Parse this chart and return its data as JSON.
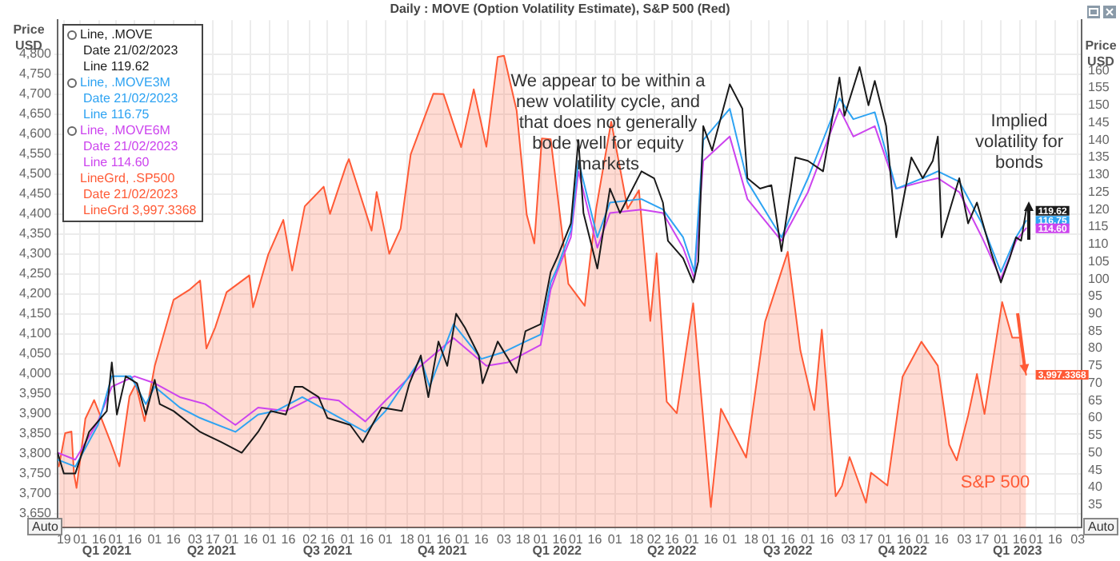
{
  "chart_data": {
    "type": "line",
    "title": "Daily : MOVE (Option Volatility Estimate), S&P 500 (Red)",
    "ylabel": "Price USD",
    "y2label": "Price USD",
    "xlim": [
      "2021-01-14",
      "2023-04-06"
    ],
    "xticks": [
      {
        "value": "2021-01-19",
        "label": "19"
      },
      {
        "value": "2021-02-01",
        "label": "01"
      },
      {
        "value": "2021-02-16",
        "label": "16"
      },
      {
        "value": "2021-03-01",
        "label": "01"
      },
      {
        "value": "2021-03-16",
        "label": "16"
      },
      {
        "value": "2021-04-01",
        "label": "01"
      },
      {
        "value": "2021-04-16",
        "label": "16"
      },
      {
        "value": "2021-05-03",
        "label": "03"
      },
      {
        "value": "2021-05-17",
        "label": "17"
      },
      {
        "value": "2021-06-01",
        "label": "01"
      },
      {
        "value": "2021-06-16",
        "label": "16"
      },
      {
        "value": "2021-07-01",
        "label": "01"
      },
      {
        "value": "2021-07-16",
        "label": "16"
      },
      {
        "value": "2021-08-02",
        "label": "02"
      },
      {
        "value": "2021-08-16",
        "label": "16"
      },
      {
        "value": "2021-09-01",
        "label": "01"
      },
      {
        "value": "2021-09-16",
        "label": "16"
      },
      {
        "value": "2021-10-01",
        "label": "01"
      },
      {
        "value": "2021-10-18",
        "label": "18"
      },
      {
        "value": "2021-11-01",
        "label": "01"
      },
      {
        "value": "2021-11-16",
        "label": "16"
      },
      {
        "value": "2021-12-01",
        "label": "01"
      },
      {
        "value": "2021-12-16",
        "label": "16"
      },
      {
        "value": "2022-01-03",
        "label": "03"
      },
      {
        "value": "2022-01-18",
        "label": "18"
      },
      {
        "value": "2022-02-01",
        "label": "01"
      },
      {
        "value": "2022-02-16",
        "label": "16"
      },
      {
        "value": "2022-03-01",
        "label": "01"
      },
      {
        "value": "2022-03-16",
        "label": "16"
      },
      {
        "value": "2022-04-01",
        "label": "01"
      },
      {
        "value": "2022-04-18",
        "label": "18"
      },
      {
        "value": "2022-05-02",
        "label": "02"
      },
      {
        "value": "2022-05-16",
        "label": "16"
      },
      {
        "value": "2022-06-01",
        "label": "01"
      },
      {
        "value": "2022-06-16",
        "label": "16"
      },
      {
        "value": "2022-07-01",
        "label": "01"
      },
      {
        "value": "2022-07-18",
        "label": "18"
      },
      {
        "value": "2022-08-01",
        "label": "01"
      },
      {
        "value": "2022-08-16",
        "label": "16"
      },
      {
        "value": "2022-09-01",
        "label": "01"
      },
      {
        "value": "2022-09-16",
        "label": "16"
      },
      {
        "value": "2022-10-03",
        "label": "03"
      },
      {
        "value": "2022-10-17",
        "label": "17"
      },
      {
        "value": "2022-11-01",
        "label": "01"
      },
      {
        "value": "2022-11-16",
        "label": "16"
      },
      {
        "value": "2022-12-01",
        "label": "01"
      },
      {
        "value": "2022-12-16",
        "label": "16"
      },
      {
        "value": "2023-01-03",
        "label": "03"
      },
      {
        "value": "2023-01-17",
        "label": "17"
      },
      {
        "value": "2023-02-01",
        "label": "01"
      },
      {
        "value": "2023-02-16",
        "label": "16"
      },
      {
        "value": "2023-03-01",
        "label": "01"
      },
      {
        "value": "2023-03-16",
        "label": "16"
      },
      {
        "value": "2023-04-03",
        "label": "03"
      }
    ],
    "x2lim": [
      "2021-01-14",
      "2023-04-06"
    ],
    "x2ticks": [
      {
        "value": "2021-02-22",
        "label": "Q1 2021"
      },
      {
        "value": "2021-05-16",
        "label": "Q2 2021"
      },
      {
        "value": "2021-08-16",
        "label": "Q3 2021"
      },
      {
        "value": "2021-11-15",
        "label": "Q4 2021"
      },
      {
        "value": "2022-02-14",
        "label": "Q1 2022"
      },
      {
        "value": "2022-05-16",
        "label": "Q2 2022"
      },
      {
        "value": "2022-08-16",
        "label": "Q3 2022"
      },
      {
        "value": "2022-11-15",
        "label": "Q4 2022"
      },
      {
        "value": "2023-02-14",
        "label": "Q1 2023"
      }
    ],
    "ylim": [
      3615,
      4885
    ],
    "yticks": [
      {
        "value": 3650,
        "label": "3,650"
      },
      {
        "value": 3700,
        "label": "3,700"
      },
      {
        "value": 3750,
        "label": "3,750"
      },
      {
        "value": 3800,
        "label": "3,800"
      },
      {
        "value": 3850,
        "label": "3,850"
      },
      {
        "value": 3900,
        "label": "3,900"
      },
      {
        "value": 3950,
        "label": "3,950"
      },
      {
        "value": 4000,
        "label": "4,000"
      },
      {
        "value": 4050,
        "label": "4,050"
      },
      {
        "value": 4100,
        "label": "4,100"
      },
      {
        "value": 4150,
        "label": "4,150"
      },
      {
        "value": 4200,
        "label": "4,200"
      },
      {
        "value": 4250,
        "label": "4,250"
      },
      {
        "value": 4300,
        "label": "4,300"
      },
      {
        "value": 4350,
        "label": "4,350"
      },
      {
        "value": 4400,
        "label": "4,400"
      },
      {
        "value": 4450,
        "label": "4,450"
      },
      {
        "value": 4500,
        "label": "4,500"
      },
      {
        "value": 4550,
        "label": "4,550"
      },
      {
        "value": 4600,
        "label": "4,600"
      },
      {
        "value": 4650,
        "label": "4,650"
      },
      {
        "value": 4700,
        "label": "4,700"
      },
      {
        "value": 4750,
        "label": "4,750"
      },
      {
        "value": 4800,
        "label": "4,800"
      }
    ],
    "y2lim": [
      28.5,
      174.5
    ],
    "y2ticks": [
      35,
      40,
      45,
      50,
      55,
      60,
      65,
      70,
      75,
      80,
      85,
      90,
      95,
      100,
      105,
      110,
      115,
      120,
      125,
      130,
      135,
      140,
      145,
      150,
      155,
      160
    ],
    "grid": true,
    "legend": "top left",
    "series": [
      {
        "name": "Line, .MOVE",
        "type": "line",
        "axis": "y2",
        "color": "#1a1a1a",
        "x": [
          "2021-01-14",
          "2021-01-19",
          "2021-01-28",
          "2021-02-08",
          "2021-02-22",
          "2021-02-26",
          "2021-03-02",
          "2021-03-09",
          "2021-03-18",
          "2021-03-25",
          "2021-04-01",
          "2021-04-05",
          "2021-04-16",
          "2021-05-07",
          "2021-05-24",
          "2021-06-09",
          "2021-06-22",
          "2021-07-02",
          "2021-07-14",
          "2021-07-21",
          "2021-07-27",
          "2021-08-09",
          "2021-08-16",
          "2021-09-03",
          "2021-09-13",
          "2021-09-28",
          "2021-10-14",
          "2021-10-20",
          "2021-10-29",
          "2021-11-04",
          "2021-11-12",
          "2021-11-19",
          "2021-11-26",
          "2021-12-03",
          "2021-12-14",
          "2021-12-17",
          "2021-12-29",
          "2022-01-13",
          "2022-01-20",
          "2022-02-01",
          "2022-02-09",
          "2022-02-14",
          "2022-02-25",
          "2022-03-03",
          "2022-03-07",
          "2022-03-18",
          "2022-03-28",
          "2022-04-05",
          "2022-04-22",
          "2022-05-02",
          "2022-05-09",
          "2022-05-13",
          "2022-05-25",
          "2022-06-02",
          "2022-06-06",
          "2022-06-10",
          "2022-06-17",
          "2022-07-01",
          "2022-07-11",
          "2022-07-15",
          "2022-07-25",
          "2022-08-03",
          "2022-08-11",
          "2022-08-22",
          "2022-09-01",
          "2022-09-13",
          "2022-09-26",
          "2022-09-30",
          "2022-10-12",
          "2022-10-19",
          "2022-10-24",
          "2022-11-02",
          "2022-11-10",
          "2022-11-22",
          "2022-12-01",
          "2022-12-09",
          "2022-12-13",
          "2022-12-16",
          "2022-12-30",
          "2023-01-06",
          "2023-01-13",
          "2023-01-24",
          "2023-02-01",
          "2023-02-08",
          "2023-02-13",
          "2023-02-17",
          "2023-02-21"
        ],
        "values": [
          50,
          44,
          44,
          56,
          62,
          76,
          61,
          72,
          70,
          61,
          71,
          64,
          62,
          56,
          53,
          50,
          56,
          62,
          61,
          69,
          69,
          66,
          60,
          58,
          53,
          63,
          62,
          70,
          78,
          66,
          82,
          75,
          90,
          86,
          78,
          70,
          82,
          73,
          85,
          87,
          102,
          106,
          116,
          140,
          119,
          103,
          126,
          119,
          131,
          129,
          122,
          111,
          106,
          99,
          105,
          144,
          137,
          156,
          149,
          129,
          126,
          127,
          108,
          135,
          134,
          131,
          158,
          147,
          161,
          150,
          157,
          144,
          112,
          135,
          129,
          134,
          141,
          112,
          129,
          116,
          122,
          108,
          99,
          106,
          112,
          111,
          119.62
        ],
        "value_labels": [
          null,
          null,
          null,
          null,
          null,
          null,
          null,
          null,
          null,
          null,
          null,
          null,
          null,
          null,
          null,
          null,
          null,
          null,
          null,
          null,
          null,
          null,
          null,
          null,
          null,
          null,
          null,
          null,
          null,
          null,
          null,
          null,
          null,
          null,
          null,
          null,
          null,
          null,
          null,
          null,
          null,
          null,
          null,
          null,
          null,
          null,
          null,
          null,
          null,
          null,
          null,
          null,
          null,
          null,
          null,
          null,
          null,
          null,
          null,
          null,
          null,
          null,
          null,
          null,
          null,
          null,
          null,
          null,
          null,
          null,
          null,
          null,
          null,
          null,
          null,
          null,
          null,
          null,
          null,
          null,
          null,
          null,
          null,
          null,
          null,
          null,
          "119.62"
        ]
      },
      {
        "name": "Line, .MOVE3M",
        "type": "line",
        "axis": "y2",
        "color": "#2ea3f2",
        "x": [
          "2021-01-14",
          "2021-01-28",
          "2021-02-15",
          "2021-02-26",
          "2021-03-13",
          "2021-03-25",
          "2021-04-01",
          "2021-04-21",
          "2021-05-07",
          "2021-06-04",
          "2021-06-22",
          "2021-07-06",
          "2021-07-27",
          "2021-08-16",
          "2021-09-15",
          "2021-10-01",
          "2021-10-29",
          "2021-11-05",
          "2021-11-24",
          "2021-12-16",
          "2022-01-03",
          "2022-01-20",
          "2022-02-01",
          "2022-02-09",
          "2022-02-14",
          "2022-02-25",
          "2022-03-03",
          "2022-03-18",
          "2022-03-28",
          "2022-04-22",
          "2022-05-09",
          "2022-05-25",
          "2022-06-03",
          "2022-06-10",
          "2022-07-01",
          "2022-07-15",
          "2022-08-11",
          "2022-09-01",
          "2022-09-26",
          "2022-10-07",
          "2022-10-24",
          "2022-11-10",
          "2022-12-01",
          "2022-12-13",
          "2022-12-30",
          "2023-01-17",
          "2023-02-01",
          "2023-02-13",
          "2023-02-21"
        ],
        "values": [
          48,
          46,
          58,
          72,
          72,
          64,
          69,
          63,
          60,
          56,
          61,
          62,
          66,
          62,
          56,
          62,
          77,
          69,
          87,
          77,
          79,
          82,
          84,
          99,
          103,
          114,
          134,
          112,
          122,
          123,
          120,
          112,
          102,
          140,
          149,
          128,
          112,
          129,
          152,
          146,
          148,
          126,
          129,
          131,
          128,
          116,
          102,
          112,
          116.75
        ],
        "value_labels": [
          null,
          null,
          null,
          null,
          null,
          null,
          null,
          null,
          null,
          null,
          null,
          null,
          null,
          null,
          null,
          null,
          null,
          null,
          null,
          null,
          null,
          null,
          null,
          null,
          null,
          null,
          null,
          null,
          null,
          null,
          null,
          null,
          null,
          null,
          null,
          null,
          null,
          null,
          null,
          null,
          null,
          null,
          null,
          null,
          null,
          null,
          null,
          null,
          "116.75"
        ]
      },
      {
        "name": "Line, .MOVE6M",
        "type": "line",
        "axis": "y2",
        "color": "#cc44ee",
        "x": [
          "2021-01-14",
          "2021-01-28",
          "2021-02-15",
          "2021-02-26",
          "2021-03-16",
          "2021-04-01",
          "2021-04-21",
          "2021-05-11",
          "2021-06-04",
          "2021-06-22",
          "2021-07-14",
          "2021-08-05",
          "2021-08-25",
          "2021-09-15",
          "2021-10-01",
          "2021-10-29",
          "2021-11-24",
          "2021-12-20",
          "2022-01-06",
          "2022-02-01",
          "2022-02-09",
          "2022-02-14",
          "2022-02-25",
          "2022-03-03",
          "2022-03-18",
          "2022-03-28",
          "2022-04-22",
          "2022-05-09",
          "2022-05-25",
          "2022-06-03",
          "2022-06-10",
          "2022-07-01",
          "2022-07-15",
          "2022-08-11",
          "2022-09-01",
          "2022-09-26",
          "2022-10-07",
          "2022-10-24",
          "2022-11-10",
          "2022-12-01",
          "2022-12-13",
          "2022-12-30",
          "2023-01-17",
          "2023-02-01",
          "2023-02-13",
          "2023-02-21"
        ],
        "values": [
          50,
          48,
          59,
          69,
          72,
          70,
          66,
          64,
          58,
          63,
          62,
          66,
          65,
          59,
          65,
          75,
          83,
          75,
          76,
          81,
          97,
          102,
          112,
          131,
          109,
          119,
          120,
          119,
          109,
          100,
          134,
          141,
          123,
          111,
          125,
          149,
          141,
          144,
          126,
          128,
          129,
          125,
          112,
          100,
          111,
          114.6
        ],
        "value_labels": [
          null,
          null,
          null,
          null,
          null,
          null,
          null,
          null,
          null,
          null,
          null,
          null,
          null,
          null,
          null,
          null,
          null,
          null,
          null,
          null,
          null,
          null,
          null,
          null,
          null,
          null,
          null,
          null,
          null,
          null,
          null,
          null,
          null,
          null,
          null,
          null,
          null,
          null,
          null,
          null,
          null,
          null,
          null,
          null,
          null,
          "114.60"
        ]
      },
      {
        "name": "LineGrd, .SP500",
        "type": "area",
        "color": "#ff5a36",
        "x": [
          "2021-01-15",
          "2021-01-20",
          "2021-01-25",
          "2021-01-27",
          "2021-01-29",
          "2021-02-05",
          "2021-02-12",
          "2021-02-25",
          "2021-03-04",
          "2021-03-12",
          "2021-03-17",
          "2021-03-24",
          "2021-04-01",
          "2021-04-16",
          "2021-04-29",
          "2021-05-07",
          "2021-05-12",
          "2021-05-19",
          "2021-05-28",
          "2021-06-15",
          "2021-06-18",
          "2021-06-30",
          "2021-07-12",
          "2021-07-19",
          "2021-07-29",
          "2021-08-13",
          "2021-08-18",
          "2021-08-31",
          "2021-09-02",
          "2021-09-20",
          "2021-09-24",
          "2021-10-04",
          "2021-10-13",
          "2021-10-21",
          "2021-11-08",
          "2021-11-16",
          "2021-11-30",
          "2021-12-10",
          "2021-12-20",
          "2021-12-29",
          "2022-01-03",
          "2022-01-13",
          "2022-01-21",
          "2022-01-27",
          "2022-02-02",
          "2022-02-09",
          "2022-02-23",
          "2022-03-08",
          "2022-03-17",
          "2022-03-29",
          "2022-04-11",
          "2022-04-20",
          "2022-04-29",
          "2022-05-04",
          "2022-05-12",
          "2022-05-20",
          "2022-06-02",
          "2022-06-16",
          "2022-06-24",
          "2022-07-14",
          "2022-07-29",
          "2022-08-16",
          "2022-08-26",
          "2022-09-06",
          "2022-09-12",
          "2022-09-23",
          "2022-09-28",
          "2022-10-04",
          "2022-10-05",
          "2022-10-17",
          "2022-10-21",
          "2022-11-03",
          "2022-11-15",
          "2022-11-30",
          "2022-12-13",
          "2022-12-22",
          "2022-12-28",
          "2023-01-06",
          "2023-01-13",
          "2023-01-19",
          "2023-02-02",
          "2023-02-10",
          "2023-02-16",
          "2023-02-21"
        ],
        "values": [
          3768,
          3851,
          3855,
          3750,
          3714,
          3887,
          3934,
          3829,
          3768,
          3943,
          3974,
          3881,
          4019,
          4185,
          4211,
          4233,
          4063,
          4116,
          4204,
          4246,
          4166,
          4298,
          4385,
          4258,
          4419,
          4468,
          4400,
          4523,
          4537,
          4358,
          4455,
          4300,
          4363,
          4549,
          4701,
          4700,
          4567,
          4712,
          4568,
          4793,
          4796,
          4659,
          4398,
          4326,
          4589,
          4587,
          4225,
          4170,
          4412,
          4631,
          4413,
          4459,
          4132,
          4301,
          3930,
          3901,
          4176,
          3666,
          3912,
          3790,
          4130,
          4305,
          4058,
          3909,
          4110,
          3693,
          3719,
          3791,
          3783,
          3677,
          3752,
          3720,
          3992,
          4080,
          4020,
          3822,
          3783,
          3895,
          3999,
          3899,
          4179,
          4090,
          4090,
          3997.3368
        ],
        "value_labels": [
          null,
          null,
          null,
          null,
          null,
          null,
          null,
          null,
          null,
          null,
          null,
          null,
          null,
          null,
          null,
          null,
          null,
          null,
          null,
          null,
          null,
          null,
          null,
          null,
          null,
          null,
          null,
          null,
          null,
          null,
          null,
          null,
          null,
          null,
          null,
          null,
          null,
          null,
          null,
          null,
          null,
          null,
          null,
          null,
          null,
          null,
          null,
          null,
          null,
          null,
          null,
          null,
          null,
          null,
          null,
          null,
          null,
          null,
          null,
          null,
          null,
          null,
          null,
          null,
          null,
          null,
          null,
          null,
          null,
          null,
          null,
          null,
          null,
          null,
          null,
          null,
          null,
          null,
          null,
          null,
          null,
          null,
          null,
          "3,997.3368"
        ]
      }
    ],
    "annotations": [
      "We appear to be within a new volatility cycle, and that does not generally bode well for equity markets",
      "Implied volatility for bonds",
      "S&P 500",
      "Date 21/02/2023",
      "Line 119.62",
      "Date 21/02/2023",
      "Line 116.75",
      "Date 21/02/2023",
      "Line 114.60",
      "Date 21/02/2023",
      "LineGrd 3,997.3368",
      "Auto",
      "Auto"
    ]
  }
}
